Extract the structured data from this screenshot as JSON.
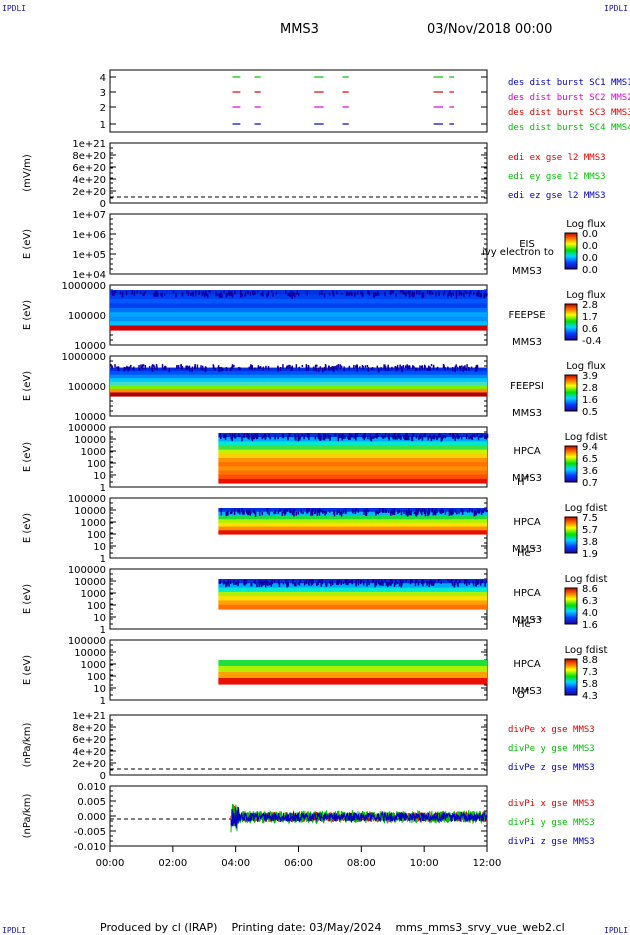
{
  "header": {
    "title": "MMS3",
    "date": "03/Nov/2018 00:00",
    "corner_left": "IPDLI",
    "corner_right": "IPDLI"
  },
  "footer": {
    "produced": "Produced by cl (IRAP)",
    "printing": "Printing date: 03/May/2024",
    "script": "mms_mms3_srvy_vue_web2.cl",
    "corner_left": "IPDLI",
    "corner_right": "IPDLI"
  },
  "colors": {
    "red": "#e00000",
    "green": "#00c000",
    "blue": "#0000c0",
    "magenta": "#e000e0"
  },
  "chart_data": [
    {
      "id": "burst",
      "type": "line",
      "y_ticks": [
        "4",
        "3",
        "2",
        "1"
      ],
      "ylim": [
        0.5,
        4.5
      ],
      "legend": [
        {
          "text": "des dist burst SC1 MMS1",
          "color": "#0000c0"
        },
        {
          "text": "des dist burst SC2 MMS2",
          "color": "#e000e0"
        },
        {
          "text": "des dist burst SC3 MMS3",
          "color": "#e00000"
        },
        {
          "text": "des dist burst SC4 MMS4",
          "color": "#00c000"
        }
      ],
      "series": [
        {
          "level": 4,
          "color": "#00c000",
          "segments": [
            [
              3.9,
              4.15
            ],
            [
              4.6,
              4.8
            ],
            [
              6.5,
              6.8
            ],
            [
              7.4,
              7.6
            ],
            [
              10.3,
              10.6
            ],
            [
              10.8,
              10.95
            ]
          ]
        },
        {
          "level": 3,
          "color": "#e00000",
          "segments": [
            [
              3.9,
              4.15
            ],
            [
              4.6,
              4.8
            ],
            [
              6.5,
              6.8
            ],
            [
              7.4,
              7.6
            ],
            [
              10.3,
              10.6
            ],
            [
              10.8,
              10.95
            ]
          ]
        },
        {
          "level": 2,
          "color": "#e000e0",
          "segments": [
            [
              3.9,
              4.15
            ],
            [
              4.6,
              4.8
            ],
            [
              6.5,
              6.8
            ],
            [
              7.4,
              7.6
            ],
            [
              10.3,
              10.6
            ],
            [
              10.8,
              10.95
            ]
          ]
        },
        {
          "level": 1,
          "color": "#0000c0",
          "segments": [
            [
              3.9,
              4.15
            ],
            [
              4.6,
              4.8
            ],
            [
              6.5,
              6.8
            ],
            [
              7.4,
              7.6
            ],
            [
              10.3,
              10.6
            ],
            [
              10.8,
              10.95
            ]
          ]
        }
      ]
    },
    {
      "id": "edi",
      "type": "line",
      "ylabel": "(mV/m)",
      "y_ticks": [
        "1e+21",
        "8e+20",
        "6e+20",
        "4e+20",
        "2e+20",
        "0"
      ],
      "dashed_zero": true,
      "legend": [
        {
          "text": "edi ex gse l2 MMS3",
          "color": "#e00000"
        },
        {
          "text": "edi ey gse l2 MMS3",
          "color": "#00c000"
        },
        {
          "text": "edi ez gse l2 MMS3",
          "color": "#0000c0"
        }
      ]
    },
    {
      "id": "eis",
      "type": "heatmap",
      "ylabel": "E (eV)",
      "y_ticks": [
        "1e+07",
        "1e+06",
        "1e+05",
        "1e+04"
      ],
      "labels": [
        "EIS",
        "MMS3"
      ],
      "overlay_text": "ivy electron to",
      "colorbar": {
        "title": "Log flux",
        "ticks": [
          "0.0",
          "0.0",
          "0.0",
          "0.0"
        ]
      }
    },
    {
      "id": "feeps_e",
      "type": "heatmap",
      "ylabel": "E (eV)",
      "y_ticks": [
        "1000000",
        "100000",
        "10000"
      ],
      "labels": [
        "FEEPSE",
        "MMS3"
      ],
      "x_range": [
        0,
        12
      ],
      "colorbar": {
        "title": "Log flux",
        "ticks": [
          "2.8",
          "1.7",
          "0.6",
          "-0.4"
        ]
      }
    },
    {
      "id": "feeps_i",
      "type": "heatmap",
      "ylabel": "E (eV)",
      "y_ticks": [
        "1000000",
        "100000",
        "10000"
      ],
      "labels": [
        "FEEPSI",
        "MMS3"
      ],
      "x_range": [
        0,
        12
      ],
      "colorbar": {
        "title": "Log flux",
        "ticks": [
          "3.9",
          "2.8",
          "1.6",
          "0.5"
        ]
      }
    },
    {
      "id": "hpca_h",
      "type": "heatmap",
      "ylabel": "E (eV)",
      "y_ticks": [
        "100000",
        "10000",
        "1000",
        "100",
        "10",
        "1"
      ],
      "labels": [
        "HPCA",
        "MMS3"
      ],
      "species": "H",
      "species_sup": "+",
      "x_range": [
        3.45,
        12
      ],
      "colorbar": {
        "title": "Log fdist",
        "ticks": [
          "9.4",
          "6.5",
          "3.6",
          "0.7"
        ]
      }
    },
    {
      "id": "hpca_he",
      "type": "heatmap",
      "ylabel": "E (eV)",
      "y_ticks": [
        "100000",
        "10000",
        "1000",
        "100",
        "10",
        "1"
      ],
      "labels": [
        "HPCA",
        "MMS3"
      ],
      "species": "He",
      "species_sup": "+",
      "x_range": [
        3.45,
        12
      ],
      "colorbar": {
        "title": "Log fdist",
        "ticks": [
          "7.5",
          "5.7",
          "3.8",
          "1.9"
        ]
      }
    },
    {
      "id": "hpca_he2",
      "type": "heatmap",
      "ylabel": "E (eV)",
      "y_ticks": [
        "100000",
        "10000",
        "1000",
        "100",
        "10",
        "1"
      ],
      "labels": [
        "HPCA",
        "MMS3"
      ],
      "species": "He",
      "species_sup": "++",
      "x_range": [
        3.45,
        12
      ],
      "colorbar": {
        "title": "Log fdist",
        "ticks": [
          "8.6",
          "6.3",
          "4.0",
          "1.6"
        ]
      }
    },
    {
      "id": "hpca_o",
      "type": "heatmap",
      "ylabel": "E (eV)",
      "y_ticks": [
        "100000",
        "10000",
        "1000",
        "100",
        "10",
        "1"
      ],
      "labels": [
        "HPCA",
        "MMS3"
      ],
      "species": "O",
      "species_sup": "+",
      "x_range": [
        3.45,
        12
      ],
      "colorbar": {
        "title": "Log fdist",
        "ticks": [
          "8.8",
          "7.3",
          "5.8",
          "4.3"
        ]
      }
    },
    {
      "id": "divpe",
      "type": "line",
      "ylabel": "(nPa/km)",
      "y_ticks": [
        "1e+21",
        "8e+20",
        "6e+20",
        "4e+20",
        "2e+20",
        "0"
      ],
      "dashed_zero": true,
      "legend": [
        {
          "text": "divPe x gse MMS3",
          "color": "#e00000"
        },
        {
          "text": "divPe y gse MMS3",
          "color": "#00c000"
        },
        {
          "text": "divPe z gse MMS3",
          "color": "#0000c0"
        }
      ]
    },
    {
      "id": "divpi",
      "type": "line",
      "ylabel": "(nPa/km)",
      "y_ticks": [
        "0.010",
        "0.005",
        "0.000",
        "-0.005",
        "-0.010"
      ],
      "ylim": [
        -0.0125,
        0.0125
      ],
      "dashed_zero": true,
      "x_range": [
        3.85,
        12
      ],
      "legend": [
        {
          "text": "divPi x gse MMS3",
          "color": "#e00000"
        },
        {
          "text": "divPi y gse MMS3",
          "color": "#00c000"
        },
        {
          "text": "divPi z gse MMS3",
          "color": "#0000c0"
        }
      ]
    }
  ],
  "x_axis": {
    "ticks": [
      "00:00",
      "02:00",
      "04:00",
      "06:00",
      "08:00",
      "10:00",
      "12:00"
    ],
    "range": [
      0,
      12
    ]
  }
}
